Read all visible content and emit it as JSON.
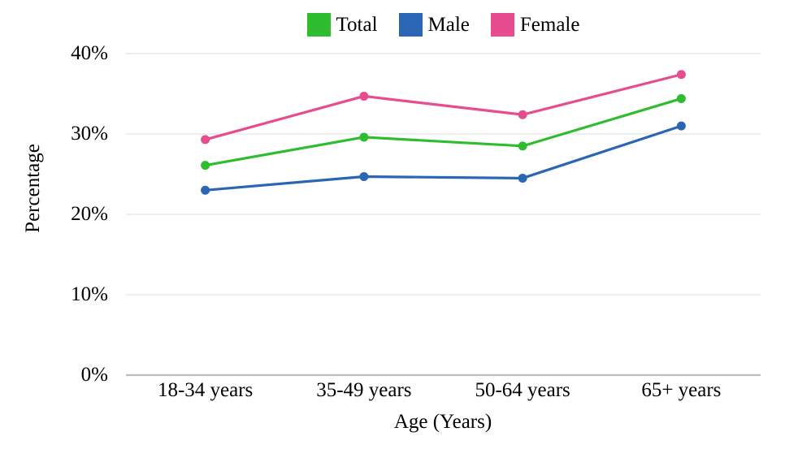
{
  "chart_data": {
    "type": "line",
    "title": "",
    "categories": [
      "18-34 years",
      "35-49 years",
      "50-64 years",
      "65+ years"
    ],
    "series": [
      {
        "name": "Total",
        "color": "#2EBD2E",
        "values": [
          26.1,
          29.6,
          28.5,
          34.4
        ]
      },
      {
        "name": "Male",
        "color": "#2B66B4",
        "values": [
          23.0,
          24.7,
          24.5,
          31.0
        ]
      },
      {
        "name": "Female",
        "color": "#E74C8E",
        "values": [
          29.3,
          34.7,
          32.4,
          37.4
        ]
      }
    ],
    "xlabel": "Age (Years)",
    "ylabel": "Percentage",
    "ylim": [
      0,
      40
    ],
    "yticks": [
      {
        "value": 0,
        "label": "0%"
      },
      {
        "value": 10,
        "label": "10%"
      },
      {
        "value": 20,
        "label": "20%"
      },
      {
        "value": 30,
        "label": "30%"
      },
      {
        "value": 40,
        "label": "40%"
      }
    ],
    "legend_position": "top",
    "grid": "horizontal"
  },
  "colors": {
    "background": "#FFFFFF",
    "gridline": "#E8E8E8",
    "axis_line": "#BDBDBD",
    "text": "#000000"
  },
  "marker": {
    "radius": 5.5,
    "line_width": 3.2
  }
}
